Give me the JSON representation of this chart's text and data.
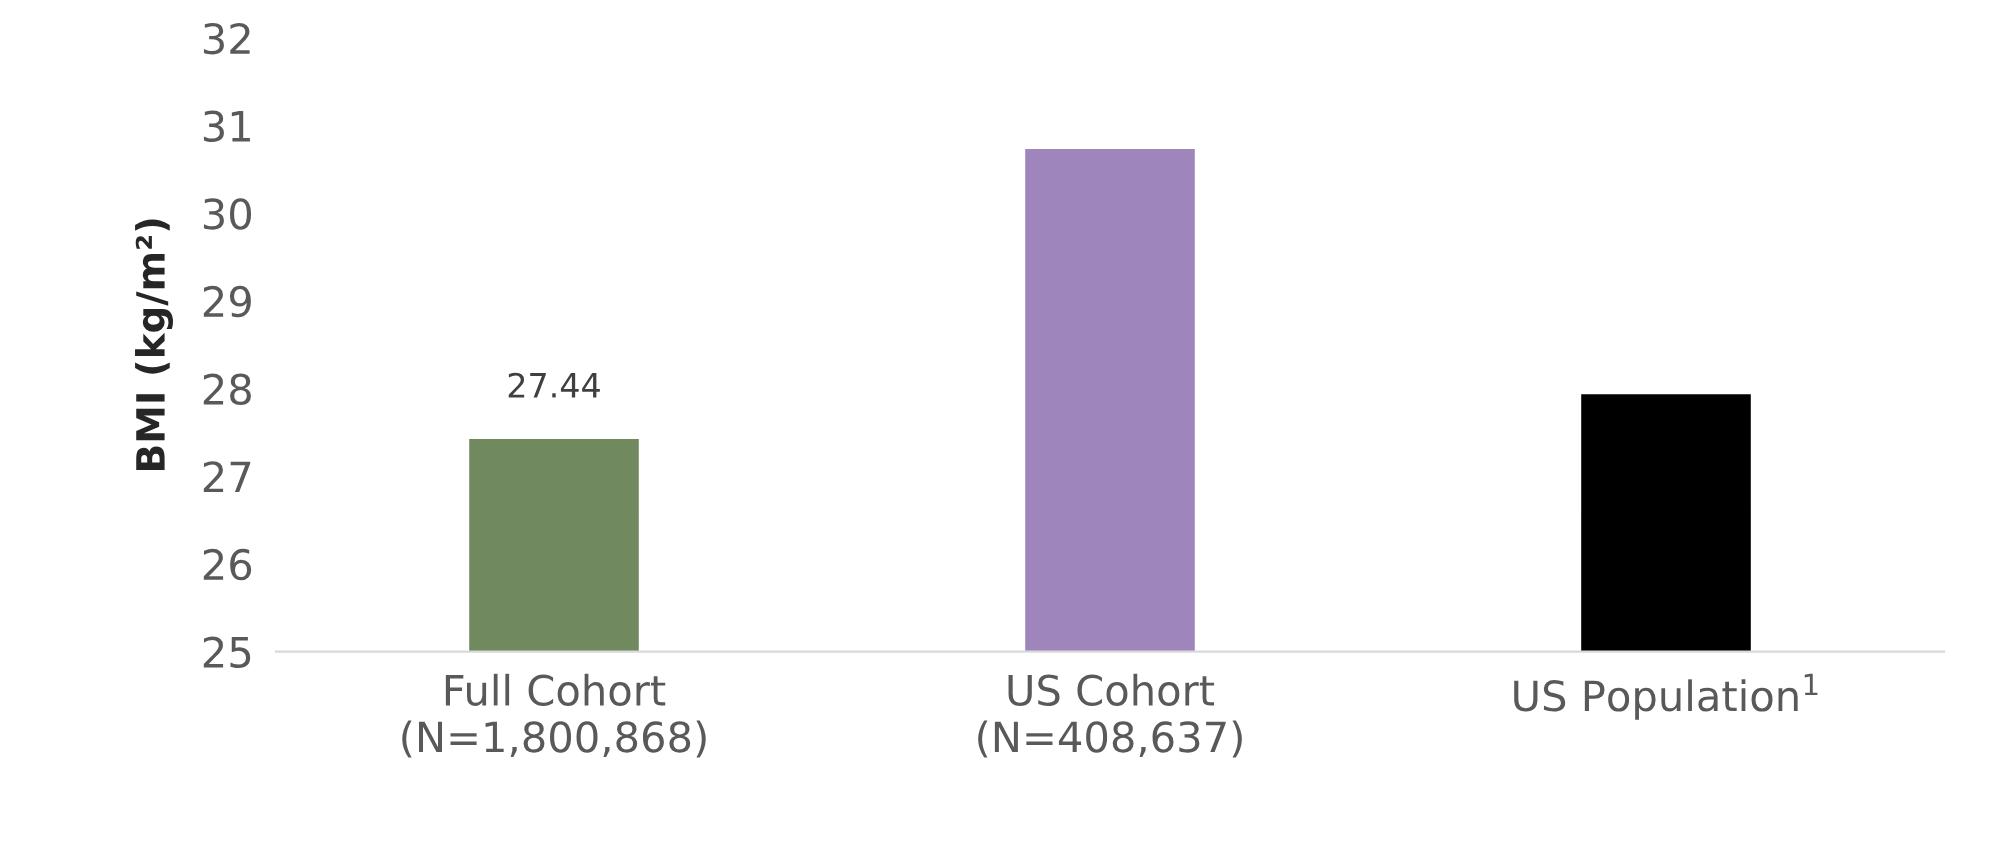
{
  "chart_data": {
    "type": "bar",
    "ylabel": "BMI (kg/m²)",
    "categories": [
      "Full Cohort\n(N=1,800,868)",
      "US Cohort\n(N=408,637)",
      "US Population$^{1}$"
    ],
    "values": [
      27.44,
      30.75,
      27.95
    ],
    "colors": [
      "#70895f",
      "#9e86bd",
      "#000000"
    ],
    "value_labels": [
      "27.44",
      null,
      null
    ],
    "ylim": [
      25,
      32
    ],
    "yticks": [
      25,
      26,
      27,
      28,
      29,
      30,
      31,
      32
    ],
    "grid": false
  }
}
